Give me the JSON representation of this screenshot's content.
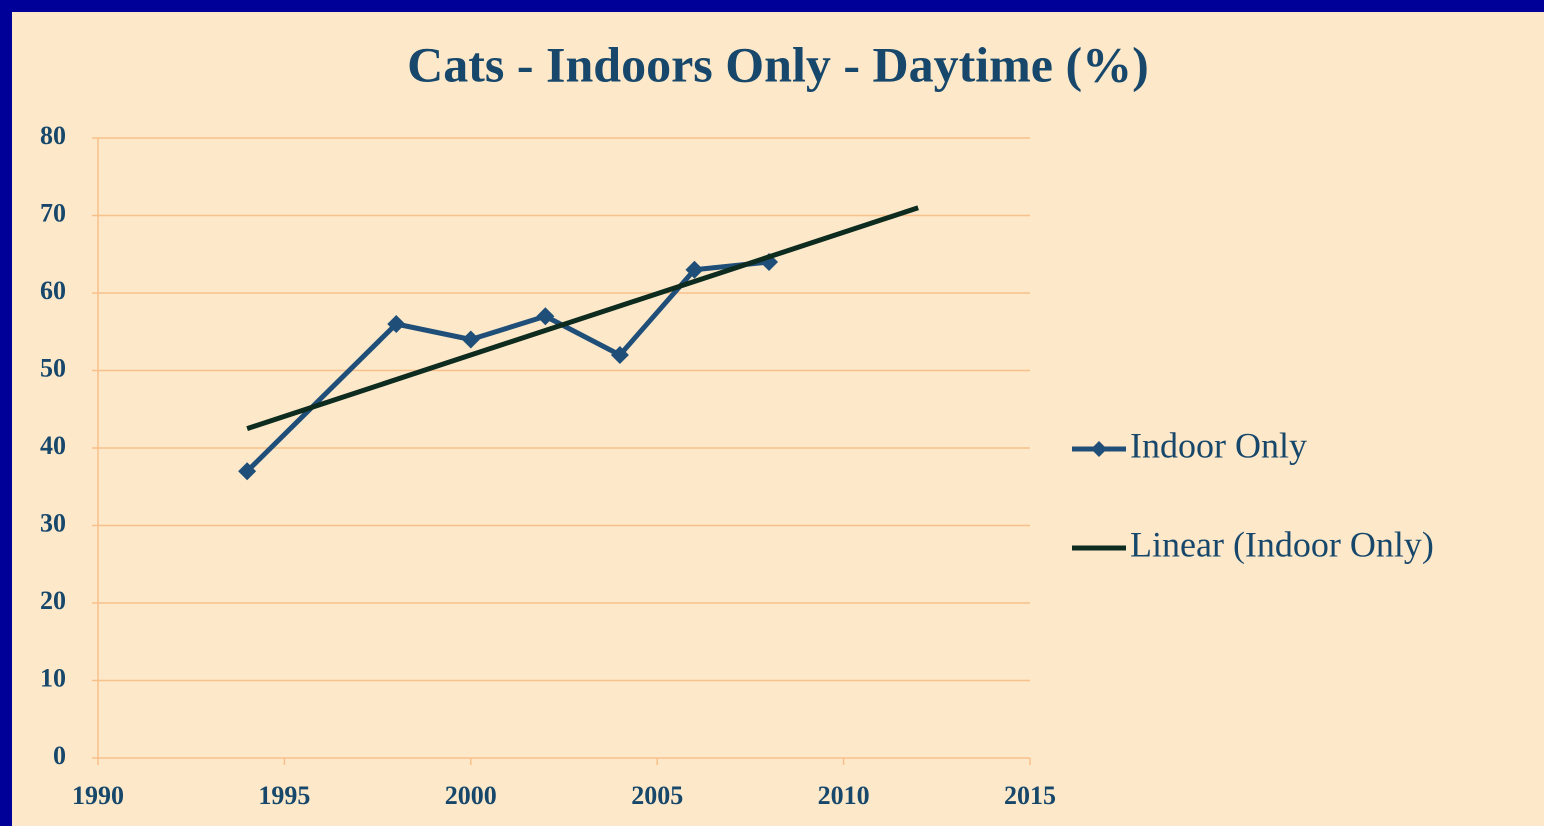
{
  "chart_data": {
    "type": "line",
    "title": "Cats - Indoors Only - Daytime (%)",
    "series": [
      {
        "name": "Indoor Only",
        "color": "#1f4e79",
        "marker": "diamond",
        "x": [
          1994,
          1998,
          2000,
          2002,
          2004,
          2006,
          2008
        ],
        "values": [
          37,
          56,
          54,
          57,
          52,
          63,
          64
        ]
      },
      {
        "name": "Linear (Indoor Only)",
        "color": "#0d2b1f",
        "marker": "none",
        "x": [
          1994,
          2012
        ],
        "values": [
          42.5,
          71
        ]
      }
    ],
    "xlim": [
      1990,
      2015
    ],
    "xticks": [
      1990,
      1995,
      2000,
      2005,
      2010,
      2015
    ],
    "ylim": [
      0,
      80
    ],
    "yticks": [
      0,
      10,
      20,
      30,
      40,
      50,
      60,
      70,
      80
    ],
    "grid": true,
    "legend": "right"
  }
}
